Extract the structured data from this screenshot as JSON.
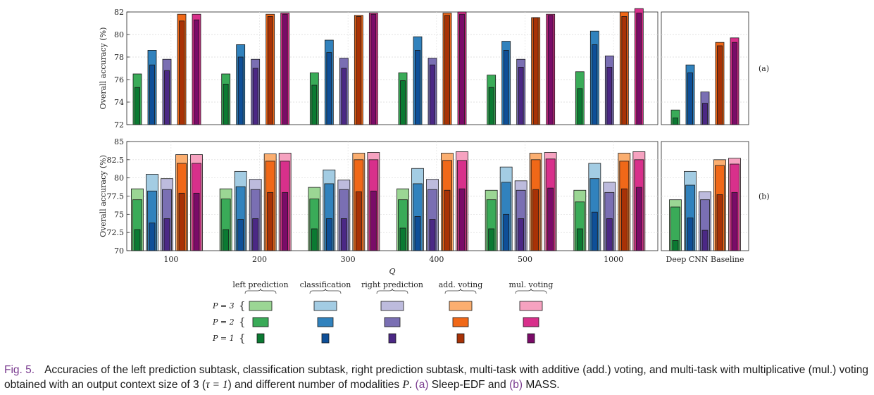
{
  "chart_data": [
    {
      "type": "bar",
      "panel_label": "(a)",
      "ylabel": "Overall accuracy (%)",
      "ylim": [
        72,
        82
      ],
      "yticks": [
        "72",
        "74",
        "76",
        "78",
        "80",
        "82"
      ],
      "grid": true,
      "categories": [
        "100",
        "200",
        "300",
        "400",
        "500",
        "1000"
      ],
      "series": [
        {
          "name": "left prediction",
          "P1": [
            75.3,
            75.6,
            75.5,
            75.9,
            75.3,
            75.2
          ],
          "P2": [
            76.5,
            76.5,
            76.6,
            76.6,
            76.4,
            76.7
          ]
        },
        {
          "name": "classification",
          "P1": [
            77.3,
            78.0,
            78.4,
            78.6,
            78.6,
            79.1
          ],
          "P2": [
            78.6,
            79.1,
            79.5,
            79.8,
            79.4,
            80.3
          ]
        },
        {
          "name": "right prediction",
          "P1": [
            76.8,
            77.0,
            77.0,
            77.3,
            77.1,
            77.1
          ],
          "P2": [
            77.8,
            77.8,
            77.9,
            77.9,
            77.8,
            78.1
          ]
        },
        {
          "name": "add. voting",
          "P1": [
            81.2,
            81.6,
            81.6,
            81.7,
            81.5,
            81.6
          ],
          "P2": [
            81.8,
            81.8,
            81.7,
            81.9,
            81.5,
            82.0
          ]
        },
        {
          "name": "mul. voting",
          "P1": [
            81.3,
            81.8,
            81.8,
            81.8,
            81.7,
            81.9
          ],
          "P2": [
            81.8,
            81.9,
            81.9,
            82.0,
            81.8,
            82.3
          ]
        }
      ],
      "baseline": {
        "P1": [
          72.6,
          76.6,
          73.9,
          79.0,
          79.3
        ],
        "P2": [
          73.3,
          77.3,
          74.9,
          79.3,
          79.7
        ]
      }
    },
    {
      "type": "bar",
      "panel_label": "(b)",
      "ylabel": "Overall accuracy (%)",
      "ylim": [
        70,
        85
      ],
      "yticks": [
        "70",
        "72.5",
        "75",
        "77.5",
        "80",
        "82.5",
        "85"
      ],
      "grid": true,
      "categories": [
        "100",
        "200",
        "300",
        "400",
        "500",
        "1000"
      ],
      "series": [
        {
          "name": "left prediction",
          "P1": [
            72.9,
            72.9,
            73.0,
            73.1,
            73.0,
            73.0
          ],
          "P2": [
            77.0,
            77.1,
            77.1,
            77.0,
            77.0,
            76.7
          ],
          "P3": [
            78.5,
            78.5,
            78.7,
            78.5,
            78.3,
            78.3
          ]
        },
        {
          "name": "classification",
          "P1": [
            73.8,
            74.3,
            74.4,
            74.7,
            75.0,
            75.3
          ],
          "P2": [
            78.2,
            78.8,
            79.2,
            79.2,
            79.4,
            79.9
          ],
          "P3": [
            80.5,
            80.9,
            81.1,
            81.3,
            81.5,
            82.0
          ]
        },
        {
          "name": "right prediction",
          "P1": [
            74.4,
            74.4,
            74.4,
            74.3,
            74.4,
            74.4
          ],
          "P2": [
            78.4,
            78.4,
            78.4,
            78.4,
            78.3,
            78.0
          ],
          "P3": [
            79.9,
            79.8,
            79.7,
            79.8,
            79.6,
            79.4
          ]
        },
        {
          "name": "add. voting",
          "P1": [
            77.9,
            78.0,
            78.1,
            78.3,
            78.4,
            78.5
          ],
          "P2": [
            82.0,
            82.3,
            82.5,
            82.4,
            82.5,
            82.3
          ],
          "P3": [
            83.2,
            83.3,
            83.4,
            83.4,
            83.4,
            83.4
          ]
        },
        {
          "name": "mul. voting",
          "P1": [
            77.9,
            78.0,
            78.2,
            78.5,
            78.6,
            78.7
          ],
          "P2": [
            82.0,
            82.3,
            82.5,
            82.4,
            82.6,
            82.5
          ],
          "P3": [
            83.2,
            83.4,
            83.5,
            83.6,
            83.5,
            83.6
          ]
        }
      ],
      "baseline": {
        "P1": [
          71.4,
          74.5,
          72.8,
          77.7,
          78.0
        ],
        "P2": [
          76.0,
          79.0,
          77.0,
          81.7,
          81.9
        ],
        "P3": [
          77.0,
          80.9,
          78.1,
          82.5,
          82.7
        ]
      }
    }
  ],
  "xlabel": "Q",
  "baseline_label": "Deep CNN Baseline",
  "legend": {
    "entries": [
      "left prediction",
      "classification",
      "right prediction",
      "add. voting",
      "mul. voting"
    ],
    "rows": [
      "P = 3",
      "P = 2",
      "P = 1"
    ],
    "brace": "{"
  },
  "colors": {
    "left prediction": [
      "#0b7a32",
      "#3aab58",
      "#9bd694"
    ],
    "classification": [
      "#0e4f98",
      "#3182bd",
      "#a3cce3"
    ],
    "right prediction": [
      "#4b2885",
      "#7a6fb3",
      "#bdbbdd"
    ],
    "add. voting": [
      "#a83206",
      "#f06818",
      "#fbae70"
    ],
    "mul. voting": [
      "#7a0b68",
      "#d8308b",
      "#f6a2c0"
    ]
  },
  "caption": {
    "fig": "Fig. 5.",
    "text1": "Accuracies of the left prediction subtask, classification subtask, right prediction subtask, multi-task with additive (add.) voting, and multi-task with multiplicative (mul.) voting obtained with an output context size of 3 (",
    "tau": "τ = 1",
    "text2": ") and different number of modalities ",
    "p": "P",
    "text3": ". ",
    "ref_a": "(a)",
    "text4": " Sleep-EDF and ",
    "ref_b": "(b)",
    "text5": " MASS."
  }
}
